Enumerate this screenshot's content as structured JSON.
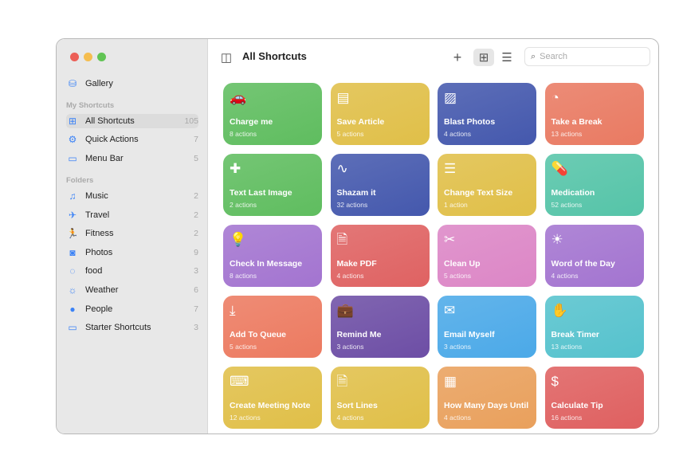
{
  "window": {
    "title": "All Shortcuts"
  },
  "toolbar": {
    "add_icon": "+",
    "search_placeholder": "Search"
  },
  "sidebar": {
    "gallery": "Gallery",
    "my_shortcuts_header": "My Shortcuts",
    "my_shortcuts": [
      {
        "label": "All Shortcuts",
        "count": "105",
        "icon": "grid"
      },
      {
        "label": "Quick Actions",
        "count": "7",
        "icon": "gear"
      },
      {
        "label": "Menu Bar",
        "count": "5",
        "icon": "window"
      }
    ],
    "folders_header": "Folders",
    "folders": [
      {
        "label": "Music",
        "count": "2",
        "icon": "♫"
      },
      {
        "label": "Travel",
        "count": "2",
        "icon": "✈"
      },
      {
        "label": "Fitness",
        "count": "2",
        "icon": "🏃"
      },
      {
        "label": "Photos",
        "count": "9",
        "icon": "◙"
      },
      {
        "label": "food",
        "count": "3",
        "icon": "◌"
      },
      {
        "label": "Weather",
        "count": "6",
        "icon": "☼"
      },
      {
        "label": "People",
        "count": "7",
        "icon": "●"
      },
      {
        "label": "Starter Shortcuts",
        "count": "3",
        "icon": "▭"
      }
    ]
  },
  "shortcuts": [
    {
      "name": "Charge me",
      "actions": "8 actions",
      "color": "#5fbd5f",
      "icon": "🚗"
    },
    {
      "name": "Save Article",
      "actions": "5 actions",
      "color": "#e0bf48",
      "icon": "▤"
    },
    {
      "name": "Blast Photos",
      "actions": "4 actions",
      "color": "#4458ad",
      "icon": "▨"
    },
    {
      "name": "Take a Break",
      "actions": "13 actions",
      "color": "#e97a62",
      "icon": "◔"
    },
    {
      "name": "Text Last Image",
      "actions": "2 actions",
      "color": "#5fbd5f",
      "icon": "✚"
    },
    {
      "name": "Shazam it",
      "actions": "32 actions",
      "color": "#4458ad",
      "icon": "∿"
    },
    {
      "name": "Change Text Size",
      "actions": "1 action",
      "color": "#e0bf48",
      "icon": "☰"
    },
    {
      "name": "Medication",
      "actions": "52 actions",
      "color": "#55c4a8",
      "icon": "💊"
    },
    {
      "name": "Check In Message",
      "actions": "8 actions",
      "color": "#a374d0",
      "icon": "💡"
    },
    {
      "name": "Make PDF",
      "actions": "4 actions",
      "color": "#df6262",
      "icon": "🗎"
    },
    {
      "name": "Clean Up",
      "actions": "5 actions",
      "color": "#dc86c6",
      "icon": "✂"
    },
    {
      "name": "Word of the Day",
      "actions": "4 actions",
      "color": "#a374d0",
      "icon": "☀"
    },
    {
      "name": "Add To Queue",
      "actions": "5 actions",
      "color": "#ec7a60",
      "icon": "⤓"
    },
    {
      "name": "Remind Me",
      "actions": "3 actions",
      "color": "#6d4ea5",
      "icon": "💼"
    },
    {
      "name": "Email Myself",
      "actions": "3 actions",
      "color": "#4ba9e8",
      "icon": "✉"
    },
    {
      "name": "Break Timer",
      "actions": "13 actions",
      "color": "#55c2cd",
      "icon": "✋"
    },
    {
      "name": "Create Meeting Note",
      "actions": "12 actions",
      "color": "#e0bf48",
      "icon": "⌨"
    },
    {
      "name": "Sort Lines",
      "actions": "4 actions",
      "color": "#e0bf48",
      "icon": "🗎"
    },
    {
      "name": "How Many Days Until",
      "actions": "4 actions",
      "color": "#e9a05c",
      "icon": "▦"
    },
    {
      "name": "Calculate Tip",
      "actions": "16 actions",
      "color": "#df6060",
      "icon": "$"
    }
  ]
}
